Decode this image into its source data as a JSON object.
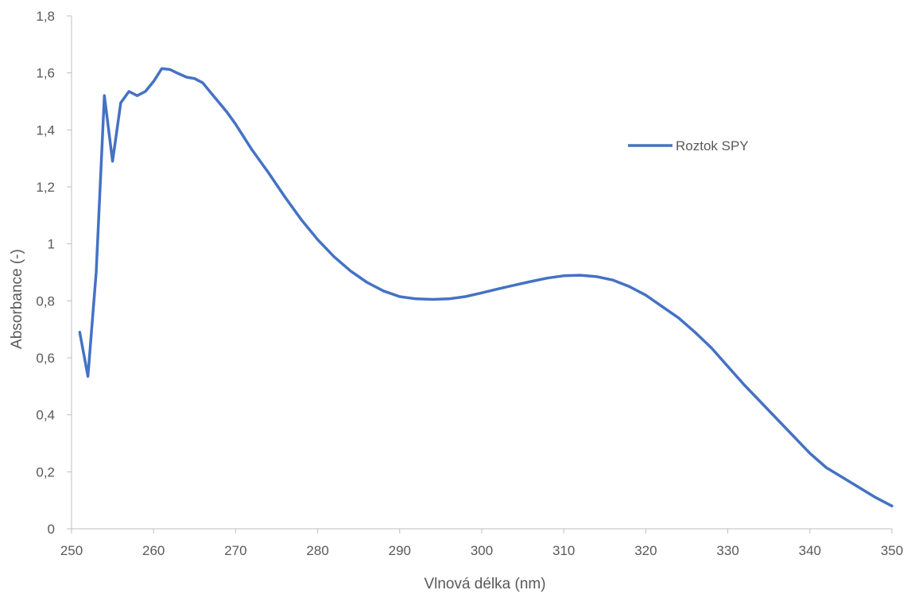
{
  "chart_data": {
    "type": "line",
    "title": "",
    "xlabel": "Vlnová délka (nm)",
    "ylabel": "Absorbance (-)",
    "xlim": [
      250,
      350
    ],
    "ylim": [
      0,
      1.8
    ],
    "x_ticks": [
      "250",
      "260",
      "270",
      "280",
      "290",
      "300",
      "310",
      "320",
      "330",
      "340",
      "350"
    ],
    "y_ticks": [
      "0",
      "0,2",
      "0,4",
      "0,6",
      "0,8",
      "1",
      "1,2",
      "1,4",
      "1,6",
      "1,8"
    ],
    "grid": false,
    "legend_position": "right",
    "series": [
      {
        "name": "Roztok SPY",
        "color": "#4472c4",
        "x": [
          251,
          252,
          253,
          254,
          255,
          256,
          257,
          258,
          259,
          260,
          261,
          262,
          263,
          264,
          265,
          266,
          267,
          268,
          269,
          270,
          272,
          274,
          276,
          278,
          280,
          282,
          284,
          286,
          288,
          290,
          292,
          294,
          296,
          298,
          300,
          302,
          304,
          306,
          308,
          310,
          312,
          314,
          316,
          318,
          320,
          322,
          324,
          326,
          328,
          330,
          332,
          334,
          336,
          338,
          340,
          342,
          344,
          346,
          348,
          350
        ],
        "values": [
          0.69,
          0.535,
          0.9,
          1.52,
          1.29,
          1.495,
          1.535,
          1.52,
          1.535,
          1.57,
          1.615,
          1.612,
          1.598,
          1.585,
          1.58,
          1.565,
          1.53,
          1.495,
          1.46,
          1.42,
          1.33,
          1.25,
          1.165,
          1.085,
          1.015,
          0.955,
          0.905,
          0.865,
          0.835,
          0.815,
          0.807,
          0.805,
          0.807,
          0.815,
          0.828,
          0.842,
          0.855,
          0.868,
          0.88,
          0.888,
          0.89,
          0.885,
          0.873,
          0.85,
          0.82,
          0.78,
          0.74,
          0.69,
          0.635,
          0.57,
          0.505,
          0.445,
          0.385,
          0.325,
          0.265,
          0.215,
          0.18,
          0.145,
          0.11,
          0.08
        ]
      }
    ]
  }
}
